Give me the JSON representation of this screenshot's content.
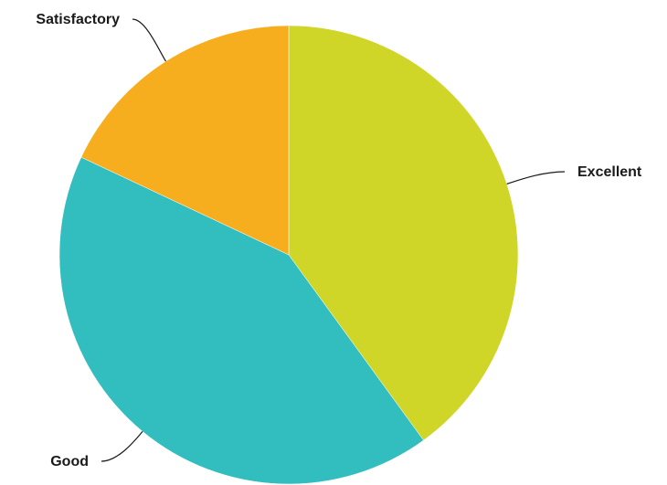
{
  "chart_data": {
    "type": "pie",
    "title": "",
    "slices": [
      {
        "label": "Excellent",
        "value": 40,
        "color": "#cfd628"
      },
      {
        "label": "Good",
        "value": 42,
        "color": "#32bdbf"
      },
      {
        "label": "Satisfactory",
        "value": 18,
        "color": "#f6ae1e"
      }
    ],
    "start": "top",
    "direction": "clockwise",
    "legend": "none",
    "labels": "outside-with-leader-lines"
  }
}
